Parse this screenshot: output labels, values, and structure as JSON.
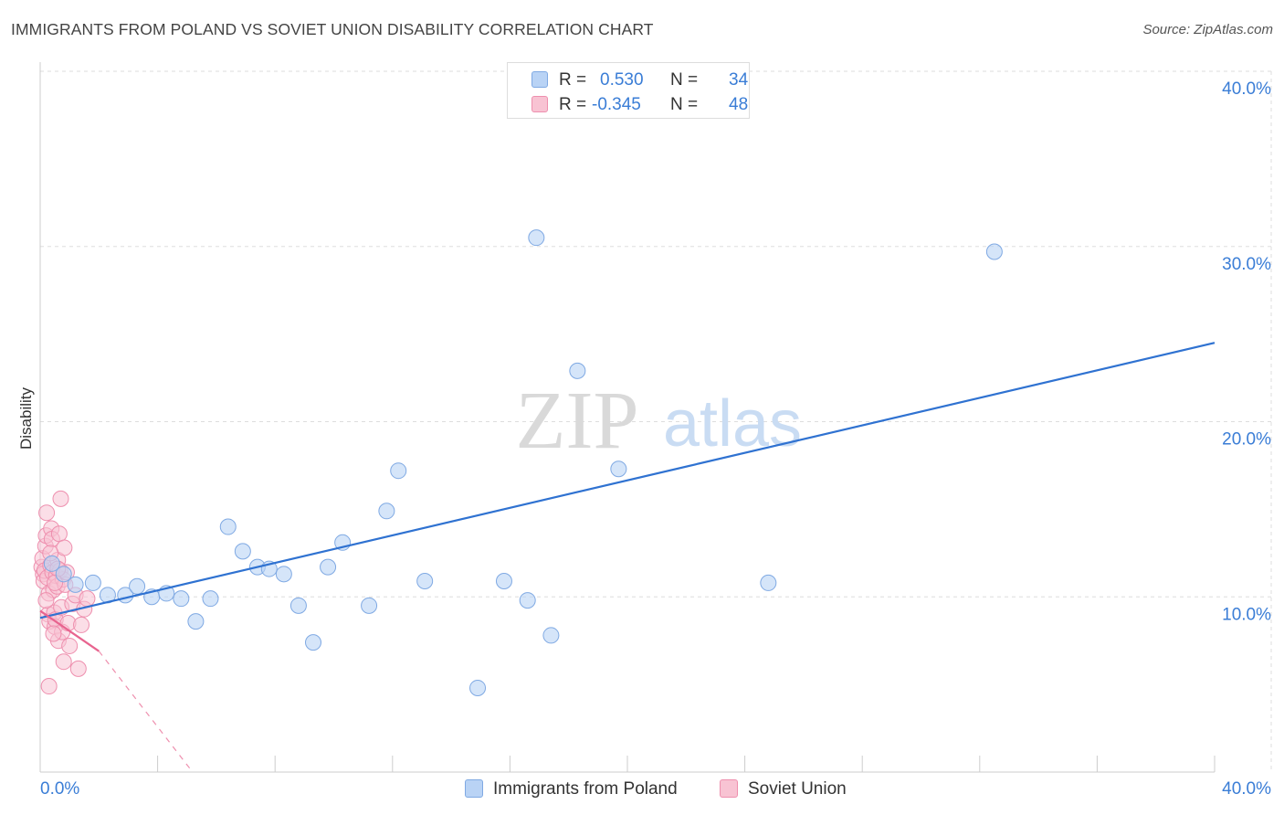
{
  "header": {
    "title": "IMMIGRANTS FROM POLAND VS SOVIET UNION DISABILITY CORRELATION CHART",
    "source": "Source: ZipAtlas.com"
  },
  "watermark": {
    "zip": "ZIP",
    "atlas": "atlas"
  },
  "legend": {
    "rows": [
      {
        "r_label": "R =",
        "r_value": "0.530",
        "n_label": "N =",
        "n_value": "34"
      },
      {
        "r_label": "R =",
        "r_value": "-0.345",
        "n_label": "N =",
        "n_value": "48"
      }
    ]
  },
  "chart_data": {
    "type": "scatter",
    "title": "IMMIGRANTS FROM POLAND VS SOVIET UNION DISABILITY CORRELATION CHART",
    "xlabel": "",
    "ylabel": "Disability",
    "xlim": [
      0,
      40
    ],
    "ylim": [
      0,
      40
    ],
    "x_tick_labels": [
      "0.0%",
      "40.0%"
    ],
    "y_ticks": [
      10,
      20,
      30,
      40
    ],
    "y_tick_labels": [
      "10.0%",
      "20.0%",
      "30.0%",
      "40.0%"
    ],
    "grid": true,
    "colors": {
      "poland_fill": "#b9d3f5",
      "poland_stroke": "#7fa9e3",
      "poland_line": "#2f72d1",
      "soviet_fill": "#f8c3d3",
      "soviet_stroke": "#ee8fae",
      "soviet_line": "#e8648f",
      "axis_text": "#3a7dd6",
      "grid": "#dddddd"
    },
    "series": [
      {
        "name": "Immigrants from Poland",
        "r": 0.53,
        "n": 34,
        "trend": {
          "x": [
            0,
            40
          ],
          "y": [
            8.8,
            24.5
          ],
          "style": "solid"
        },
        "points": [
          [
            0.4,
            11.9
          ],
          [
            0.8,
            11.3
          ],
          [
            1.2,
            10.7
          ],
          [
            1.8,
            10.8
          ],
          [
            2.3,
            10.1
          ],
          [
            2.9,
            10.1
          ],
          [
            3.3,
            10.6
          ],
          [
            3.8,
            10.0
          ],
          [
            4.3,
            10.2
          ],
          [
            4.8,
            9.9
          ],
          [
            5.3,
            8.6
          ],
          [
            5.8,
            9.9
          ],
          [
            6.4,
            14.0
          ],
          [
            6.9,
            12.6
          ],
          [
            7.4,
            11.7
          ],
          [
            7.8,
            11.6
          ],
          [
            8.3,
            11.3
          ],
          [
            8.8,
            9.5
          ],
          [
            9.3,
            7.4
          ],
          [
            9.8,
            11.7
          ],
          [
            10.3,
            13.1
          ],
          [
            11.2,
            9.5
          ],
          [
            11.8,
            14.9
          ],
          [
            12.2,
            17.2
          ],
          [
            13.1,
            10.9
          ],
          [
            14.9,
            4.8
          ],
          [
            15.8,
            10.9
          ],
          [
            16.6,
            9.8
          ],
          [
            16.9,
            30.5
          ],
          [
            17.4,
            7.8
          ],
          [
            18.3,
            22.9
          ],
          [
            19.7,
            17.3
          ],
          [
            24.8,
            10.8
          ],
          [
            32.5,
            29.7
          ]
        ]
      },
      {
        "name": "Soviet Union",
        "r": -0.345,
        "n": 48,
        "trend": {
          "x": [
            0,
            2.0
          ],
          "y": [
            9.2,
            6.9
          ],
          "style": "solid",
          "extension": {
            "x": [
              2.0,
              5.1
            ],
            "y": [
              6.9,
              0.2
            ],
            "style": "dashed"
          }
        },
        "points": [
          [
            0.05,
            11.7
          ],
          [
            0.08,
            12.2
          ],
          [
            0.1,
            11.3
          ],
          [
            0.12,
            10.9
          ],
          [
            0.15,
            11.5
          ],
          [
            0.18,
            12.9
          ],
          [
            0.2,
            13.5
          ],
          [
            0.22,
            14.8
          ],
          [
            0.25,
            11.1
          ],
          [
            0.28,
            9.0
          ],
          [
            0.3,
            10.2
          ],
          [
            0.32,
            8.6
          ],
          [
            0.35,
            11.8
          ],
          [
            0.38,
            13.9
          ],
          [
            0.4,
            13.3
          ],
          [
            0.42,
            11.4
          ],
          [
            0.45,
            10.4
          ],
          [
            0.48,
            9.1
          ],
          [
            0.5,
            8.3
          ],
          [
            0.52,
            8.7
          ],
          [
            0.55,
            11.2
          ],
          [
            0.58,
            10.6
          ],
          [
            0.6,
            12.1
          ],
          [
            0.62,
            7.5
          ],
          [
            0.65,
            13.6
          ],
          [
            0.68,
            11.5
          ],
          [
            0.7,
            15.6
          ],
          [
            0.72,
            9.4
          ],
          [
            0.75,
            8.0
          ],
          [
            0.78,
            11.0
          ],
          [
            0.8,
            6.3
          ],
          [
            0.82,
            12.8
          ],
          [
            0.85,
            10.7
          ],
          [
            0.9,
            11.4
          ],
          [
            0.95,
            8.5
          ],
          [
            1.0,
            7.2
          ],
          [
            1.1,
            9.6
          ],
          [
            1.2,
            10.1
          ],
          [
            1.3,
            5.9
          ],
          [
            1.4,
            8.4
          ],
          [
            1.5,
            9.3
          ],
          [
            1.6,
            9.9
          ],
          [
            0.3,
            4.9
          ],
          [
            0.45,
            7.9
          ],
          [
            0.2,
            9.8
          ],
          [
            0.6,
            11.6
          ],
          [
            0.35,
            12.5
          ],
          [
            0.5,
            10.8
          ]
        ]
      }
    ]
  },
  "bottom_legend": {
    "items": [
      {
        "label": "Immigrants from Poland"
      },
      {
        "label": "Soviet Union"
      }
    ]
  }
}
